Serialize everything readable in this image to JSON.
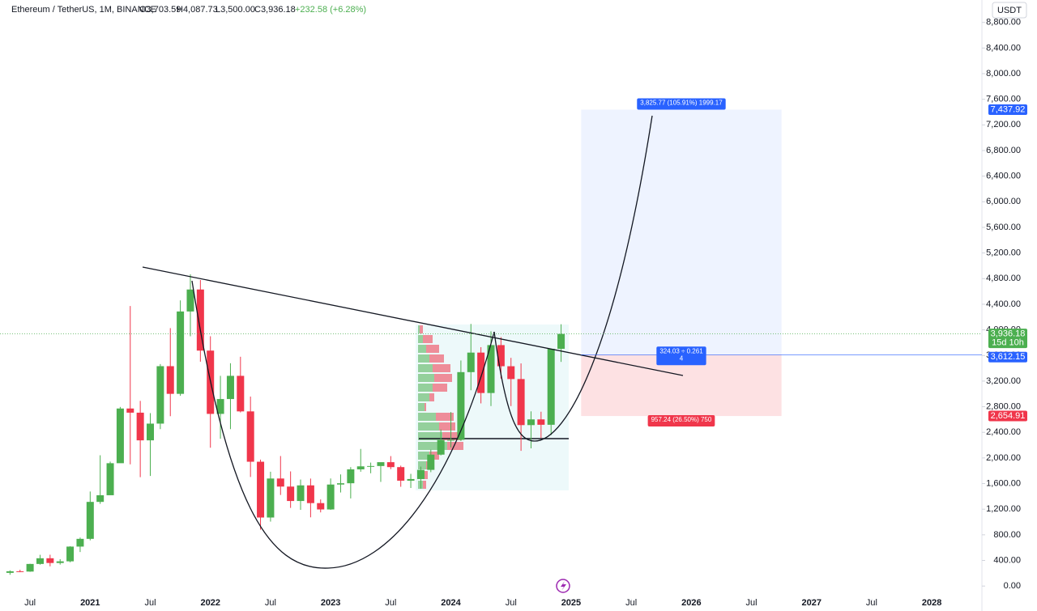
{
  "chart_data": {
    "type": "candlestick",
    "title": "Ethereum / TetherUS, 1M, BINANCE",
    "ohlc_labels": [
      "O3,703.59",
      "H4,087.73",
      "L3,500.00",
      "C3,936.18"
    ],
    "change_label": "+232.58 (+6.28%)",
    "currency": "USDT",
    "up_color": "#4caf50",
    "down_color": "#f0364b",
    "x": [
      "2020-05",
      "2020-06",
      "2020-07",
      "2020-08",
      "2020-09",
      "2020-10",
      "2020-11",
      "2020-12",
      "2021-01",
      "2021-02",
      "2021-03",
      "2021-04",
      "2021-05",
      "2021-06",
      "2021-07",
      "2021-08",
      "2021-09",
      "2021-10",
      "2021-11",
      "2021-12",
      "2022-01",
      "2022-02",
      "2022-03",
      "2022-04",
      "2022-05",
      "2022-06",
      "2022-07",
      "2022-08",
      "2022-09",
      "2022-10",
      "2022-11",
      "2022-12",
      "2023-01",
      "2023-02",
      "2023-03",
      "2023-04",
      "2023-05",
      "2023-06",
      "2023-07",
      "2023-08",
      "2023-09",
      "2023-10",
      "2023-11",
      "2023-12",
      "2024-01",
      "2024-02",
      "2024-03",
      "2024-04",
      "2024-05",
      "2024-06",
      "2024-07",
      "2024-08",
      "2024-09",
      "2024-10",
      "2024-11",
      "2024-12"
    ],
    "open": [
      206,
      231,
      226,
      345,
      434,
      360,
      386,
      616,
      737,
      1314,
      1418,
      1918,
      2772,
      2707,
      2275,
      2536,
      3433,
      3001,
      4287,
      4630,
      3676,
      2688,
      2920,
      3282,
      2727,
      1941,
      1070,
      1679,
      1553,
      1328,
      1572,
      1295,
      1196,
      1585,
      1605,
      1822,
      1869,
      1874,
      1934,
      1857,
      1645,
      1671,
      1814,
      2052,
      2281,
      2283,
      3340,
      3645,
      3014,
      3762,
      3432,
      3232,
      2513,
      2602,
      2518,
      3703.59
    ],
    "high": [
      245,
      254,
      348,
      488,
      489,
      420,
      622,
      757,
      1476,
      2042,
      1943,
      2797,
      4372,
      2891,
      2700,
      3466,
      4027,
      4460,
      4868,
      4778,
      3900,
      3282,
      3479,
      3580,
      2958,
      1974,
      1785,
      2030,
      1790,
      1663,
      1678,
      1352,
      1680,
      1743,
      1857,
      2141,
      1928,
      1929,
      2029,
      1880,
      1752,
      1865,
      2130,
      2445,
      2717,
      3522,
      4093,
      3730,
      3977,
      3887,
      3563,
      3476,
      2728,
      2722,
      3687,
      4087.73
    ],
    "low": [
      176,
      216,
      222,
      334,
      308,
      335,
      371,
      531,
      714,
      1283,
      1436,
      1930,
      1900,
      1700,
      1719,
      2450,
      2652,
      2970,
      3900,
      3503,
      2159,
      2300,
      2450,
      2711,
      1703,
      880,
      1006,
      1422,
      1220,
      1190,
      1073,
      1150,
      1190,
      1461,
      1368,
      1785,
      1761,
      1626,
      1825,
      1550,
      1531,
      1521,
      1778,
      2040,
      2165,
      2266,
      3057,
      2852,
      2810,
      3240,
      2810,
      2111,
      2150,
      2310,
      2357,
      3500
    ],
    "close": [
      231,
      226,
      345,
      434,
      360,
      386,
      616,
      737,
      1314,
      1418,
      1918,
      2772,
      2707,
      2275,
      2536,
      3433,
      3001,
      4287,
      4630,
      3676,
      2688,
      2920,
      3282,
      2727,
      1941,
      1070,
      1679,
      1553,
      1328,
      1572,
      1295,
      1196,
      1585,
      1605,
      1822,
      1869,
      1874,
      1934,
      1857,
      1645,
      1671,
      1814,
      2052,
      2281,
      2283,
      3340,
      3645,
      3014,
      3762,
      3432,
      3232,
      2513,
      2602,
      2518,
      3703.59,
      3936.18
    ],
    "xlim": [
      "2020-04",
      "2028-06"
    ],
    "xticks": [
      {
        "value": "2020-07",
        "label": "Jul"
      },
      {
        "value": "2021-01",
        "label": "2021"
      },
      {
        "value": "2021-07",
        "label": "Jul"
      },
      {
        "value": "2022-01",
        "label": "2022"
      },
      {
        "value": "2022-07",
        "label": "Jul"
      },
      {
        "value": "2023-01",
        "label": "2023"
      },
      {
        "value": "2023-07",
        "label": "Jul"
      },
      {
        "value": "2024-01",
        "label": "2024"
      },
      {
        "value": "2024-07",
        "label": "Jul"
      },
      {
        "value": "2025-01",
        "label": "2025"
      },
      {
        "value": "2025-07",
        "label": "Jul"
      },
      {
        "value": "2026-01",
        "label": "2026"
      },
      {
        "value": "2026-07",
        "label": "Jul"
      },
      {
        "value": "2027-01",
        "label": "2027"
      },
      {
        "value": "2027-07",
        "label": "Jul"
      },
      {
        "value": "2028-01",
        "label": "2028"
      }
    ],
    "ylim": [
      -200,
      9150
    ],
    "yticks": [
      {
        "value": 0,
        "label": "0.00"
      },
      {
        "value": 400,
        "label": "400.00"
      },
      {
        "value": 800,
        "label": "800.00"
      },
      {
        "value": 1200,
        "label": "1,200.00"
      },
      {
        "value": 1600,
        "label": "1,600.00"
      },
      {
        "value": 2000,
        "label": "2,000.00"
      },
      {
        "value": 2400,
        "label": "2,400.00"
      },
      {
        "value": 2800,
        "label": "2,800.00"
      },
      {
        "value": 3200,
        "label": "3,200.00"
      },
      {
        "value": 3600,
        "label": "3,600.00"
      },
      {
        "value": 4000,
        "label": "4,000.00"
      },
      {
        "value": 4400,
        "label": "4,400.00"
      },
      {
        "value": 4800,
        "label": "4,800.00"
      },
      {
        "value": 5200,
        "label": "5,200.00"
      },
      {
        "value": 5600,
        "label": "5,600.00"
      },
      {
        "value": 6000,
        "label": "6,000.00"
      },
      {
        "value": 6400,
        "label": "6,400.00"
      },
      {
        "value": 6800,
        "label": "6,800.00"
      },
      {
        "value": 7200,
        "label": "7,200.00"
      },
      {
        "value": 7600,
        "label": "7,600.00"
      },
      {
        "value": 8000,
        "label": "8,000.00"
      },
      {
        "value": 8400,
        "label": "8,400.00"
      },
      {
        "value": 8800,
        "label": "8,800.00"
      }
    ],
    "current_price": {
      "value": 3936.18,
      "label": "3,936.18",
      "countdown": "15d 10h",
      "color": "#4caf50"
    },
    "position": {
      "start": "2025-02",
      "end": "2026-10",
      "target": {
        "value": 7437.92,
        "label": "7,437.92",
        "color": "#2962ff"
      },
      "entry": {
        "value": 3612.15,
        "label": "3,612.15",
        "color": "#2962ff"
      },
      "stop": {
        "value": 2654.91,
        "label": "2,654.91",
        "color": "#f0364b"
      },
      "target_text": "3,825.77 (105.91%) 1999.17",
      "ratio_text": "324.03 ÷ 0.261",
      "ratio": 4,
      "stop_text": "957.24 (26.50%) 750"
    }
  }
}
